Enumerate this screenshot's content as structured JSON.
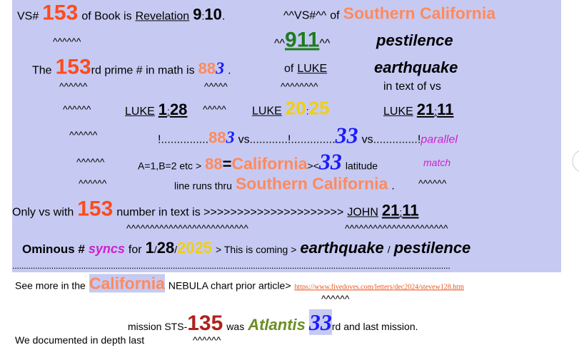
{
  "lines": [
    [
      "VS#",
      "153",
      "of Book is",
      "Revelation",
      "9",
      ":",
      "10",
      ".",
      "^^VS#^^",
      "of",
      "Southern California"
    ],
    [
      "^^^^^^",
      "^^",
      "911",
      "^^",
      "pestilence"
    ],
    [
      "The",
      "153",
      "rd prime # in math is",
      "88",
      "3",
      ".",
      "of",
      "LUKE",
      "earthquake"
    ],
    [
      "^^^^^^",
      "^^^^^",
      "^^^^^^^^",
      "in text of vs"
    ],
    [
      "^^^^^^",
      "LUKE",
      "1",
      ":",
      "28",
      "^^^^^",
      "LUKE",
      "20",
      ":",
      "25",
      "LUKE",
      "21",
      ":",
      "11"
    ],
    [
      "^^^^^^",
      "!...............",
      "88",
      "3",
      "vs............!..............",
      "33",
      "vs..............!",
      "parallel"
    ],
    [
      "^^^^^^",
      "A=1,B=2 etc >",
      "88",
      "=",
      "California",
      "><",
      "33",
      "latitude",
      "match"
    ],
    [
      "^^^^^^",
      "line runs thru",
      "Southern California",
      ".",
      "^^^^^^"
    ],
    [
      "Only vs with",
      "153",
      "number in text is >>>>>>>>>>>>>>>>>>>>>",
      "JOHN",
      "21",
      ":",
      "11"
    ],
    [
      "^^^^^^^^^^^^^^^^^^^^^^^^^^",
      "^^^^^^^^^^^^^^^^^^^^^^"
    ],
    [
      "Ominous #",
      "syncs",
      "for",
      "1",
      "/",
      "28",
      "/",
      "2025",
      "> This is coming >",
      "earthquake",
      "/",
      "pestilence"
    ],
    [
      "..............................................................................................................................................................................................."
    ],
    [
      "See more in the",
      "California",
      "NEBULA chart prior article>",
      "https://www.fivedoves.com/letters/dec2024/stevew128.htm"
    ],
    [
      "^^^^^^"
    ],
    [
      "mission STS-",
      "135",
      "was",
      "Atlantis",
      "33",
      "rd and last mission."
    ],
    [
      "We documented in depth last",
      "^^^^^^"
    ]
  ]
}
